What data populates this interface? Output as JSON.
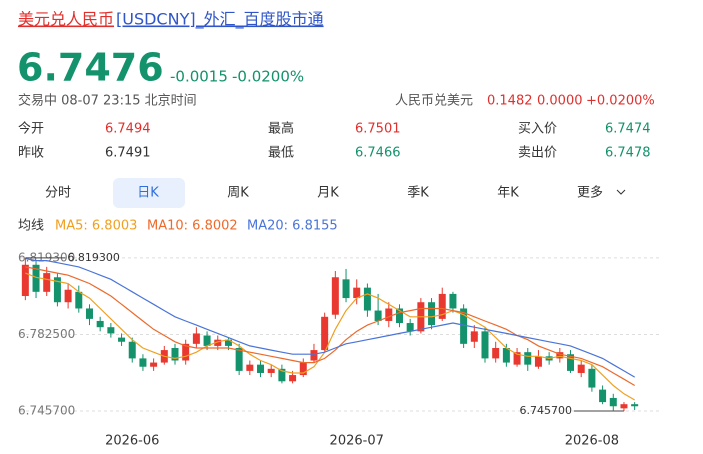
{
  "header": {
    "title_name": "美元兑人民币",
    "title_rest": "[USDCNY]_外汇_百度股市通"
  },
  "quote": {
    "price": "6.7476",
    "change": "-0.0015",
    "change_pct": "-0.0200%",
    "status": "交易中 08-07 23:15 北京时间",
    "cross_label": "人民币兑美元",
    "cross_price": "0.1482",
    "cross_change": "0.0000",
    "cross_change_pct": "+0.0200%"
  },
  "stats": [
    [
      {
        "label": "今开",
        "value": "6.7494"
      },
      {
        "label": "最高",
        "value": "6.7501"
      },
      {
        "label": "买入价",
        "value": "6.7474"
      }
    ],
    [
      {
        "label": "昨收",
        "value": "6.7491"
      },
      {
        "label": "最低",
        "value": "6.7466"
      },
      {
        "label": "卖出价",
        "value": "6.7478"
      }
    ]
  ],
  "tabs": [
    "分时",
    "日K",
    "周K",
    "月K",
    "季K",
    "年K",
    "更多"
  ],
  "chart_data": {
    "type": "candlestick",
    "legend_title": "均线",
    "categories": [
      null,
      null,
      null,
      null,
      null,
      null,
      null,
      null,
      null,
      null,
      "2026-06",
      null,
      null,
      null,
      null,
      null,
      null,
      null,
      null,
      null,
      null,
      null,
      null,
      null,
      null,
      null,
      null,
      null,
      null,
      null,
      null,
      "2026-07",
      null,
      null,
      null,
      null,
      null,
      null,
      null,
      null,
      null,
      null,
      null,
      null,
      null,
      null,
      null,
      null,
      null,
      null,
      null,
      null,
      null,
      "2026-08",
      null,
      null,
      null,
      null
    ],
    "open": [
      6.801,
      6.816,
      6.803,
      6.81,
      6.798,
      6.803,
      6.795,
      6.789,
      6.786,
      6.781,
      6.779,
      6.771,
      6.767,
      6.769,
      6.776,
      6.77,
      6.778,
      6.782,
      6.777,
      6.78,
      6.776,
      6.765,
      6.768,
      6.764,
      6.766,
      6.76,
      6.763,
      6.77,
      6.775,
      6.792,
      6.809,
      6.8,
      6.805,
      6.794,
      6.789,
      6.795,
      6.788,
      6.784,
      6.798,
      6.79,
      6.802,
      6.795,
      6.779,
      6.784,
      6.771,
      6.776,
      6.768,
      6.774,
      6.767,
      6.772,
      6.771,
      6.773,
      6.764,
      6.766,
      6.756,
      6.752,
      6.747,
      6.749
    ],
    "close": [
      6.816,
      6.803,
      6.812,
      6.798,
      6.804,
      6.795,
      6.79,
      6.786,
      6.783,
      6.779,
      6.771,
      6.767,
      6.769,
      6.775,
      6.77,
      6.778,
      6.783,
      6.777,
      6.78,
      6.777,
      6.765,
      6.768,
      6.764,
      6.766,
      6.76,
      6.763,
      6.769,
      6.775,
      6.791,
      6.81,
      6.8,
      6.805,
      6.794,
      6.789,
      6.795,
      6.788,
      6.784,
      6.798,
      6.787,
      6.802,
      6.795,
      6.778,
      6.784,
      6.771,
      6.776,
      6.769,
      6.774,
      6.768,
      6.772,
      6.77,
      6.774,
      6.765,
      6.768,
      6.757,
      6.75,
      6.748,
      6.749,
      6.748
    ],
    "high": [
      6.8193,
      6.818,
      6.815,
      6.812,
      6.807,
      6.806,
      6.797,
      6.791,
      6.788,
      6.783,
      6.781,
      6.773,
      6.771,
      6.777,
      6.778,
      6.78,
      6.786,
      6.784,
      6.782,
      6.781,
      6.778,
      6.77,
      6.77,
      6.768,
      6.768,
      6.765,
      6.771,
      6.778,
      6.793,
      6.813,
      6.814,
      6.809,
      6.807,
      6.802,
      6.798,
      6.797,
      6.79,
      6.8,
      6.8,
      6.805,
      6.803,
      6.797,
      6.787,
      6.786,
      6.779,
      6.778,
      6.776,
      6.776,
      6.775,
      6.774,
      6.776,
      6.775,
      6.77,
      6.768,
      6.758,
      6.754,
      6.75,
      6.75
    ],
    "low": [
      6.799,
      6.8,
      6.801,
      6.796,
      6.795,
      6.793,
      6.787,
      6.784,
      6.781,
      6.777,
      6.769,
      6.765,
      6.765,
      6.768,
      6.768,
      6.768,
      6.776,
      6.775,
      6.775,
      6.775,
      6.763,
      6.763,
      6.762,
      6.762,
      6.759,
      6.759,
      6.762,
      6.769,
      6.774,
      6.79,
      6.798,
      6.797,
      6.791,
      6.787,
      6.786,
      6.786,
      6.782,
      6.783,
      6.785,
      6.789,
      6.793,
      6.776,
      6.776,
      6.769,
      6.769,
      6.767,
      6.767,
      6.765,
      6.766,
      6.768,
      6.769,
      6.764,
      6.762,
      6.755,
      6.749,
      6.746,
      6.7457,
      6.7462
    ],
    "up_color": "#e8382f",
    "down_color": "#13926b",
    "series": [
      {
        "name": "MA5: 6.8003",
        "color": "#f0a020",
        "values": [
          6.812,
          6.81,
          6.809,
          6.808,
          6.807,
          6.803,
          6.8,
          6.795,
          6.79,
          6.785,
          6.78,
          6.776,
          6.774,
          6.772,
          6.771,
          6.772,
          6.774,
          6.777,
          6.779,
          6.78,
          6.777,
          6.773,
          6.77,
          6.768,
          6.765,
          6.764,
          6.764,
          6.767,
          6.774,
          6.785,
          6.794,
          6.8,
          6.802,
          6.8,
          6.797,
          6.794,
          6.791,
          6.791,
          6.791,
          6.792,
          6.794,
          6.792,
          6.789,
          6.786,
          6.781,
          6.776,
          6.773,
          6.772,
          6.772,
          6.771,
          6.772,
          6.771,
          6.77,
          6.768,
          6.763,
          6.758,
          6.754,
          6.751
        ]
      },
      {
        "name": "MA10: 6.8002",
        "color": "#ec6a2c",
        "values": [
          6.815,
          6.814,
          6.813,
          6.812,
          6.811,
          6.809,
          6.807,
          6.804,
          6.801,
          6.797,
          6.793,
          6.789,
          6.785,
          6.782,
          6.779,
          6.777,
          6.776,
          6.776,
          6.776,
          6.776,
          6.775,
          6.774,
          6.773,
          6.772,
          6.771,
          6.77,
          6.769,
          6.769,
          6.771,
          6.775,
          6.78,
          6.784,
          6.787,
          6.789,
          6.791,
          6.793,
          6.794,
          6.795,
          6.795,
          6.795,
          6.794,
          6.793,
          6.791,
          6.789,
          6.787,
          6.785,
          6.782,
          6.78,
          6.777,
          6.775,
          6.773,
          6.772,
          6.771,
          6.769,
          6.767,
          6.764,
          6.761,
          6.758
        ]
      },
      {
        "name": "MA20: 6.8155",
        "color": "#4a74d8",
        "values": [
          6.819,
          6.818,
          6.818,
          6.817,
          6.816,
          6.815,
          6.813,
          6.811,
          6.809,
          6.806,
          6.803,
          6.8,
          6.797,
          6.794,
          6.791,
          6.789,
          6.787,
          6.785,
          6.783,
          6.781,
          6.779,
          6.777,
          6.776,
          6.775,
          6.774,
          6.773,
          6.773,
          6.773,
          6.774,
          6.776,
          6.778,
          6.779,
          6.78,
          6.781,
          6.782,
          6.783,
          6.784,
          6.785,
          6.786,
          6.787,
          6.788,
          6.787,
          6.786,
          6.785,
          6.784,
          6.783,
          6.782,
          6.781,
          6.78,
          6.779,
          6.778,
          6.777,
          6.775,
          6.773,
          6.771,
          6.768,
          6.765,
          6.762
        ]
      }
    ],
    "ylim": [
      6.7414,
      6.8231
    ],
    "yticks": [
      {
        "value": 6.8193,
        "label": "6.819300"
      },
      {
        "value": 6.7825,
        "label": "6.782500"
      },
      {
        "value": 6.7457,
        "label": "6.745700"
      }
    ],
    "annotations": [
      {
        "label": "6.819300",
        "value": 6.8193
      },
      {
        "label": "6.745700",
        "value": 6.7457
      }
    ]
  }
}
